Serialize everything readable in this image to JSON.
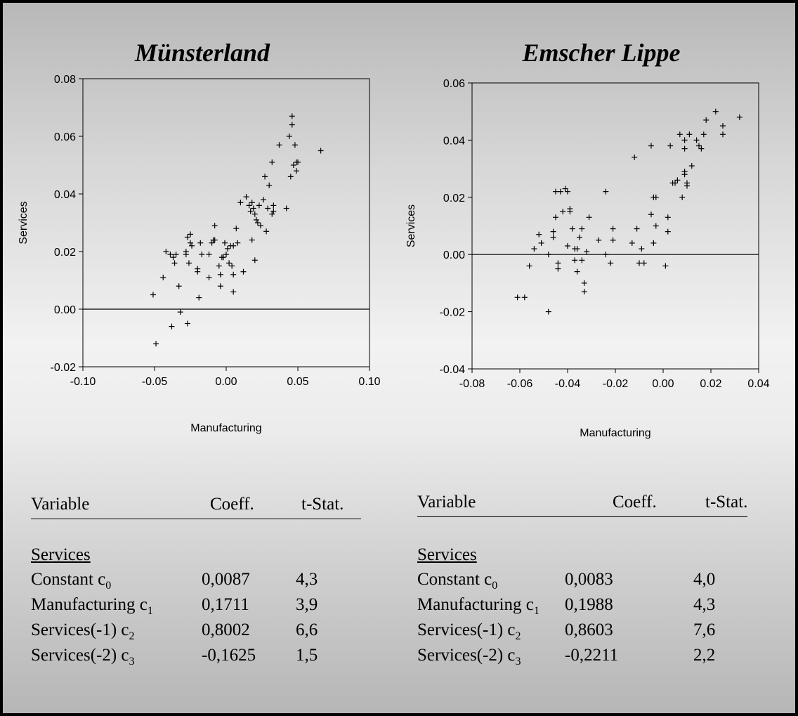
{
  "chart_data": [
    {
      "type": "scatter",
      "title": "Münsterland",
      "xlabel": "Manufacturing",
      "ylabel": "Services",
      "xlim": [
        -0.1,
        0.1
      ],
      "ylim": [
        -0.02,
        0.08
      ],
      "xticks": [
        "-0.10",
        "-0.05",
        "0.00",
        "0.05",
        "0.10"
      ],
      "yticks": [
        "-0.02",
        "0.00",
        "0.02",
        "0.04",
        "0.06",
        "0.08"
      ],
      "hline": 0.0,
      "grid": false,
      "points": [
        [
          -0.051,
          0.005
        ],
        [
          -0.049,
          -0.012
        ],
        [
          -0.044,
          0.011
        ],
        [
          -0.042,
          0.02
        ],
        [
          -0.039,
          0.019
        ],
        [
          -0.038,
          -0.006
        ],
        [
          -0.037,
          0.018
        ],
        [
          -0.036,
          0.016
        ],
        [
          -0.035,
          0.019
        ],
        [
          -0.033,
          0.008
        ],
        [
          -0.032,
          -0.001
        ],
        [
          -0.028,
          0.02
        ],
        [
          -0.028,
          0.019
        ],
        [
          -0.027,
          0.025
        ],
        [
          -0.027,
          -0.005
        ],
        [
          -0.026,
          0.016
        ],
        [
          -0.025,
          0.026
        ],
        [
          -0.025,
          0.023
        ],
        [
          -0.024,
          0.022
        ],
        [
          -0.02,
          0.014
        ],
        [
          -0.02,
          0.013
        ],
        [
          -0.019,
          0.004
        ],
        [
          -0.018,
          0.023
        ],
        [
          -0.017,
          0.019
        ],
        [
          -0.012,
          0.019
        ],
        [
          -0.012,
          0.011
        ],
        [
          -0.01,
          0.023
        ],
        [
          -0.009,
          0.024
        ],
        [
          -0.008,
          0.029
        ],
        [
          -0.008,
          0.024
        ],
        [
          -0.005,
          0.015
        ],
        [
          -0.004,
          0.008
        ],
        [
          -0.004,
          0.012
        ],
        [
          -0.003,
          0.018
        ],
        [
          -0.002,
          0.018
        ],
        [
          -0.001,
          0.023
        ],
        [
          0.0,
          0.019
        ],
        [
          0.001,
          0.021
        ],
        [
          0.002,
          0.016
        ],
        [
          0.003,
          0.022
        ],
        [
          0.004,
          0.015
        ],
        [
          0.005,
          0.006
        ],
        [
          0.005,
          0.012
        ],
        [
          0.005,
          0.022
        ],
        [
          0.007,
          0.028
        ],
        [
          0.008,
          0.023
        ],
        [
          0.01,
          0.037
        ],
        [
          0.012,
          0.013
        ],
        [
          0.014,
          0.039
        ],
        [
          0.016,
          0.036
        ],
        [
          0.017,
          0.034
        ],
        [
          0.018,
          0.024
        ],
        [
          0.018,
          0.037
        ],
        [
          0.019,
          0.035
        ],
        [
          0.02,
          0.033
        ],
        [
          0.02,
          0.017
        ],
        [
          0.021,
          0.031
        ],
        [
          0.022,
          0.03
        ],
        [
          0.023,
          0.036
        ],
        [
          0.024,
          0.029
        ],
        [
          0.026,
          0.038
        ],
        [
          0.027,
          0.046
        ],
        [
          0.028,
          0.027
        ],
        [
          0.029,
          0.035
        ],
        [
          0.03,
          0.043
        ],
        [
          0.032,
          0.051
        ],
        [
          0.032,
          0.033
        ],
        [
          0.033,
          0.036
        ],
        [
          0.033,
          0.034
        ],
        [
          0.037,
          0.057
        ],
        [
          0.042,
          0.035
        ],
        [
          0.044,
          0.06
        ],
        [
          0.045,
          0.046
        ],
        [
          0.046,
          0.067
        ],
        [
          0.046,
          0.064
        ],
        [
          0.047,
          0.05
        ],
        [
          0.048,
          0.057
        ],
        [
          0.049,
          0.051
        ],
        [
          0.049,
          0.048
        ],
        [
          0.05,
          0.051
        ],
        [
          0.066,
          0.055
        ]
      ]
    },
    {
      "type": "scatter",
      "title": "Emscher Lippe",
      "xlabel": "Manufacturing",
      "ylabel": "Services",
      "xlim": [
        -0.08,
        0.04
      ],
      "ylim": [
        -0.04,
        0.06
      ],
      "xticks": [
        "-0.08",
        "-0.06",
        "-0.04",
        "-0.02",
        "0.00",
        "0.02",
        "0.04"
      ],
      "yticks": [
        "-0.04",
        "-0.02",
        "0.00",
        "0.02",
        "0.04",
        "0.06"
      ],
      "hline": 0.0,
      "grid": false,
      "points": [
        [
          -0.061,
          -0.015
        ],
        [
          -0.058,
          -0.015
        ],
        [
          -0.056,
          -0.004
        ],
        [
          -0.054,
          0.002
        ],
        [
          -0.052,
          0.007
        ],
        [
          -0.051,
          0.004
        ],
        [
          -0.048,
          0.0
        ],
        [
          -0.048,
          -0.02
        ],
        [
          -0.046,
          0.006
        ],
        [
          -0.046,
          0.008
        ],
        [
          -0.045,
          0.013
        ],
        [
          -0.045,
          0.022
        ],
        [
          -0.044,
          -0.003
        ],
        [
          -0.044,
          -0.005
        ],
        [
          -0.043,
          0.022
        ],
        [
          -0.042,
          0.015
        ],
        [
          -0.041,
          0.023
        ],
        [
          -0.04,
          0.022
        ],
        [
          -0.04,
          0.003
        ],
        [
          -0.039,
          0.016
        ],
        [
          -0.039,
          0.015
        ],
        [
          -0.038,
          0.009
        ],
        [
          -0.037,
          0.002
        ],
        [
          -0.037,
          -0.002
        ],
        [
          -0.036,
          -0.006
        ],
        [
          -0.036,
          0.002
        ],
        [
          -0.035,
          0.006
        ],
        [
          -0.034,
          0.009
        ],
        [
          -0.034,
          -0.002
        ],
        [
          -0.033,
          -0.013
        ],
        [
          -0.033,
          -0.01
        ],
        [
          -0.032,
          0.001
        ],
        [
          -0.031,
          0.013
        ],
        [
          -0.027,
          0.005
        ],
        [
          -0.024,
          0.022
        ],
        [
          -0.024,
          0.0
        ],
        [
          -0.022,
          -0.003
        ],
        [
          -0.021,
          0.009
        ],
        [
          -0.021,
          0.005
        ],
        [
          -0.012,
          0.034
        ],
        [
          -0.013,
          0.004
        ],
        [
          -0.011,
          0.009
        ],
        [
          -0.01,
          -0.003
        ],
        [
          -0.009,
          0.002
        ],
        [
          -0.008,
          -0.003
        ],
        [
          -0.005,
          0.038
        ],
        [
          -0.005,
          0.014
        ],
        [
          -0.004,
          0.02
        ],
        [
          -0.003,
          0.02
        ],
        [
          -0.003,
          0.01
        ],
        [
          -0.004,
          0.004
        ],
        [
          0.001,
          -0.004
        ],
        [
          0.002,
          0.013
        ],
        [
          0.002,
          0.008
        ],
        [
          0.003,
          0.038
        ],
        [
          0.004,
          0.025
        ],
        [
          0.005,
          0.025
        ],
        [
          0.006,
          0.026
        ],
        [
          0.007,
          0.042
        ],
        [
          0.008,
          0.02
        ],
        [
          0.009,
          0.04
        ],
        [
          0.009,
          0.037
        ],
        [
          0.009,
          0.029
        ],
        [
          0.009,
          0.028
        ],
        [
          0.01,
          0.025
        ],
        [
          0.01,
          0.024
        ],
        [
          0.011,
          0.042
        ],
        [
          0.012,
          0.031
        ],
        [
          0.014,
          0.04
        ],
        [
          0.015,
          0.038
        ],
        [
          0.016,
          0.037
        ],
        [
          0.017,
          0.042
        ],
        [
          0.018,
          0.047
        ],
        [
          0.022,
          0.05
        ],
        [
          0.025,
          0.042
        ],
        [
          0.025,
          0.045
        ],
        [
          0.032,
          0.048
        ]
      ]
    }
  ],
  "tables": [
    {
      "header": {
        "variable": "Variable",
        "coeff": "Coeff.",
        "tstat": "t-Stat."
      },
      "section": "Services",
      "rows": [
        {
          "label": "Constant  c",
          "sub": "0",
          "coeff": "0,0087",
          "tstat": "4,3"
        },
        {
          "label": "Manufacturing c",
          "sub": "1",
          "coeff": "0,1711",
          "tstat": "3,9"
        },
        {
          "label": "Services(-1)  c",
          "sub": "2",
          "coeff": "0,8002",
          "tstat": "6,6"
        },
        {
          "label": "Services(-2)  c",
          "sub": "3",
          "coeff": "-0,1625",
          "tstat": "1,5"
        }
      ]
    },
    {
      "header": {
        "variable": "Variable",
        "coeff": "Coeff.",
        "tstat": "t-Stat."
      },
      "section": "Services",
      "rows": [
        {
          "label": "Constant  c",
          "sub": "0",
          "coeff": "0,0083",
          "tstat": "4,0"
        },
        {
          "label": "Manufacturing  c",
          "sub": "1",
          "coeff": "0,1988",
          "tstat": "4,3"
        },
        {
          "label": "Services(-1)  c",
          "sub": "2",
          "coeff": "0,8603",
          "tstat": "7,6"
        },
        {
          "label": "Services(-2)  c",
          "sub": "3",
          "coeff": "-0,2211",
          "tstat": "2,2"
        }
      ]
    }
  ]
}
